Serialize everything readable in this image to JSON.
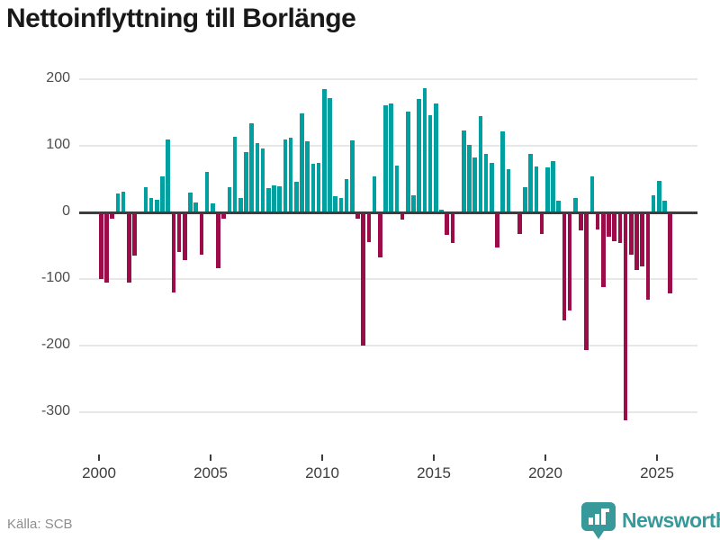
{
  "title": "Nettoinflyttning till Borlänge",
  "source": {
    "label": "Källa: SCB"
  },
  "brand": {
    "name": "Newsworthy",
    "color": "#38999b"
  },
  "chart_data": {
    "type": "bar",
    "title": "Nettoinflyttning till Borlänge",
    "x_start": "2000-Q1",
    "x_frequency": "quarterly",
    "x_tick_years": [
      2000,
      2005,
      2010,
      2015,
      2020,
      2025
    ],
    "ylim": [
      -340,
      215
    ],
    "yticks": [
      200,
      100,
      0,
      -100,
      -200,
      -300
    ],
    "grid": "horizontal",
    "legend": "none",
    "positive_color": "#00a0a0",
    "negative_color": "#9b0c49",
    "ylabel": "",
    "xlabel": "",
    "values": [
      -98,
      -104,
      -8,
      28,
      31,
      -104,
      -63,
      0,
      38,
      22,
      19,
      54,
      110,
      -118,
      -57,
      -69,
      30,
      15,
      -61,
      61,
      13,
      -82,
      -8,
      38,
      113,
      22,
      91,
      134,
      104,
      96,
      36,
      41,
      39,
      109,
      112,
      46,
      149,
      107,
      73,
      75,
      185,
      171,
      25,
      22,
      50,
      108,
      -7,
      -198,
      -43,
      54,
      -66,
      161,
      163,
      70,
      -9,
      151,
      26,
      170,
      187,
      146,
      164,
      4,
      -32,
      -44,
      0,
      123,
      101,
      82,
      144,
      88,
      74,
      -50,
      121,
      65,
      0,
      -31,
      38,
      88,
      69,
      -30,
      68,
      77,
      18,
      -160,
      -145,
      22,
      -25,
      -205,
      54,
      -23,
      -110,
      -34,
      -41,
      -44,
      -310,
      -61,
      -84,
      -79,
      -129,
      26,
      47,
      17,
      -119
    ]
  }
}
